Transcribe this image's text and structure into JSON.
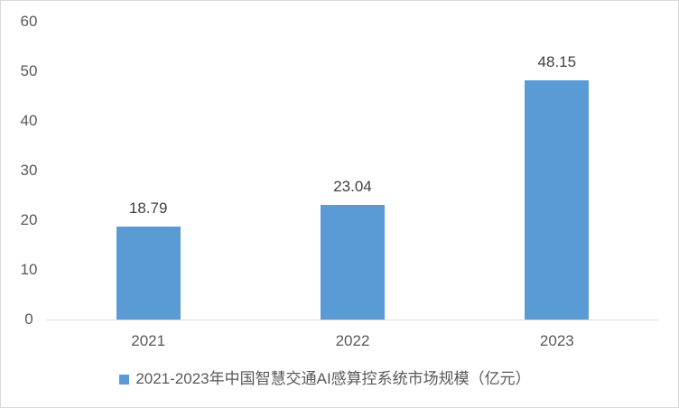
{
  "chart_data": {
    "type": "bar",
    "categories": [
      "2021",
      "2022",
      "2023"
    ],
    "values": [
      18.79,
      23.04,
      48.15
    ],
    "value_labels": [
      "18.79",
      "23.04",
      "48.15"
    ],
    "series_name": "2021-2023年中国智慧交通AI感算控系统市场规模（亿元）",
    "legend_label": "2021-2023年中国智慧交通AI感算控系统市场规模（亿元）",
    "legend_position": "bottom",
    "title": "",
    "xlabel": "",
    "ylabel": "",
    "ylim": [
      0,
      60
    ],
    "yticks": [
      "0",
      "10",
      "20",
      "30",
      "40",
      "50",
      "60"
    ],
    "grid": false,
    "bar_color": "#5B9BD5"
  },
  "colors": {
    "bar_fill": "#5B9BD5",
    "axis_line": "#D9D9D9",
    "tick_label_text": "#595959",
    "data_label_text": "#404040",
    "legend_text": "#595959",
    "frame_border": "#D9D9D9",
    "background": "#FFFFFF"
  }
}
